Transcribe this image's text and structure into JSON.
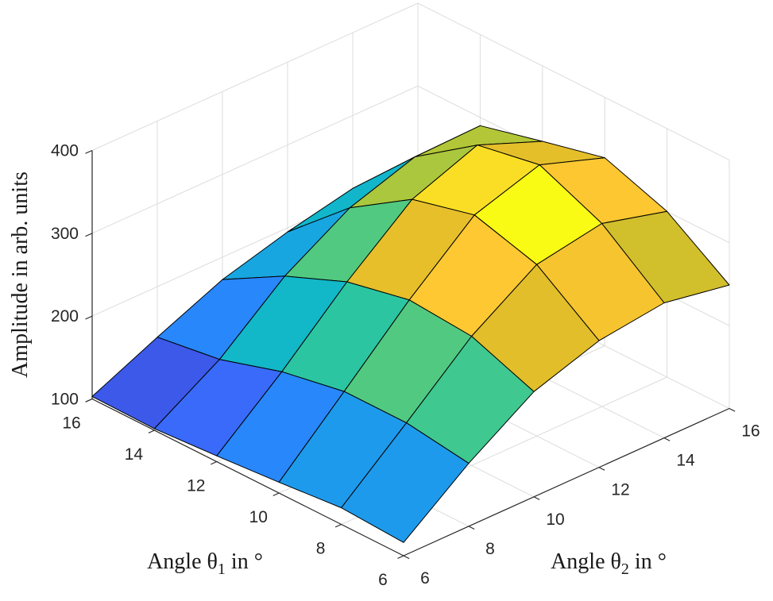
{
  "chart_data": {
    "type": "surface",
    "title": "",
    "zlabel": "Amplitude in arb. units",
    "xlabel": {
      "prefix": "Angle θ",
      "sub": "2",
      "suffix": " in °"
    },
    "ylabel": {
      "prefix": "Angle θ",
      "sub": "1",
      "suffix": " in °"
    },
    "theta1": [
      6,
      8,
      10,
      12,
      14,
      16
    ],
    "theta2": [
      6,
      8,
      10,
      12,
      14,
      16
    ],
    "theta1_ticks": [
      "6",
      "8",
      "10",
      "12",
      "14",
      "16"
    ],
    "theta2_ticks": [
      "6",
      "8",
      "10",
      "12",
      "14",
      "16"
    ],
    "z_ticks": [
      "100",
      "200",
      "300",
      "400"
    ],
    "zlim": [
      100,
      400
    ],
    "caxis": [
      102,
      354
    ],
    "amplitude": [
      [
        116,
        176,
        227,
        253,
        263,
        249
      ],
      [
        120,
        187,
        256,
        307,
        321,
        300
      ],
      [
        113,
        187,
        262,
        329,
        354,
        327
      ],
      [
        107,
        173,
        246,
        310,
        340,
        309
      ],
      [
        102,
        150,
        215,
        262,
        288,
        290
      ],
      [
        103,
        139,
        173,
        195,
        212,
        208
      ]
    ],
    "grid_on": true,
    "view": {
      "azimuth": -37.5,
      "elevation": 30
    },
    "colormap": {
      "name": "parula",
      "stops": [
        [
          0.0,
          53,
          42,
          135
        ],
        [
          0.1,
          63,
          71,
          217
        ],
        [
          0.2,
          56,
          110,
          252
        ],
        [
          0.3,
          37,
          140,
          249
        ],
        [
          0.4,
          18,
          177,
          214
        ],
        [
          0.5,
          18,
          190,
          185
        ],
        [
          0.6,
          55,
          200,
          151
        ],
        [
          0.7,
          129,
          204,
          89
        ],
        [
          0.75,
          183,
          197,
          52
        ],
        [
          0.8,
          220,
          189,
          41
        ],
        [
          0.85,
          240,
          193,
          44
        ],
        [
          0.9,
          254,
          200,
          50
        ],
        [
          0.95,
          249,
          225,
          36
        ],
        [
          1.0,
          249,
          251,
          21
        ]
      ]
    },
    "colors": {
      "axis": "#262626",
      "grid": "#dcdcdc",
      "edge": "#000000",
      "background": "#ffffff"
    }
  }
}
